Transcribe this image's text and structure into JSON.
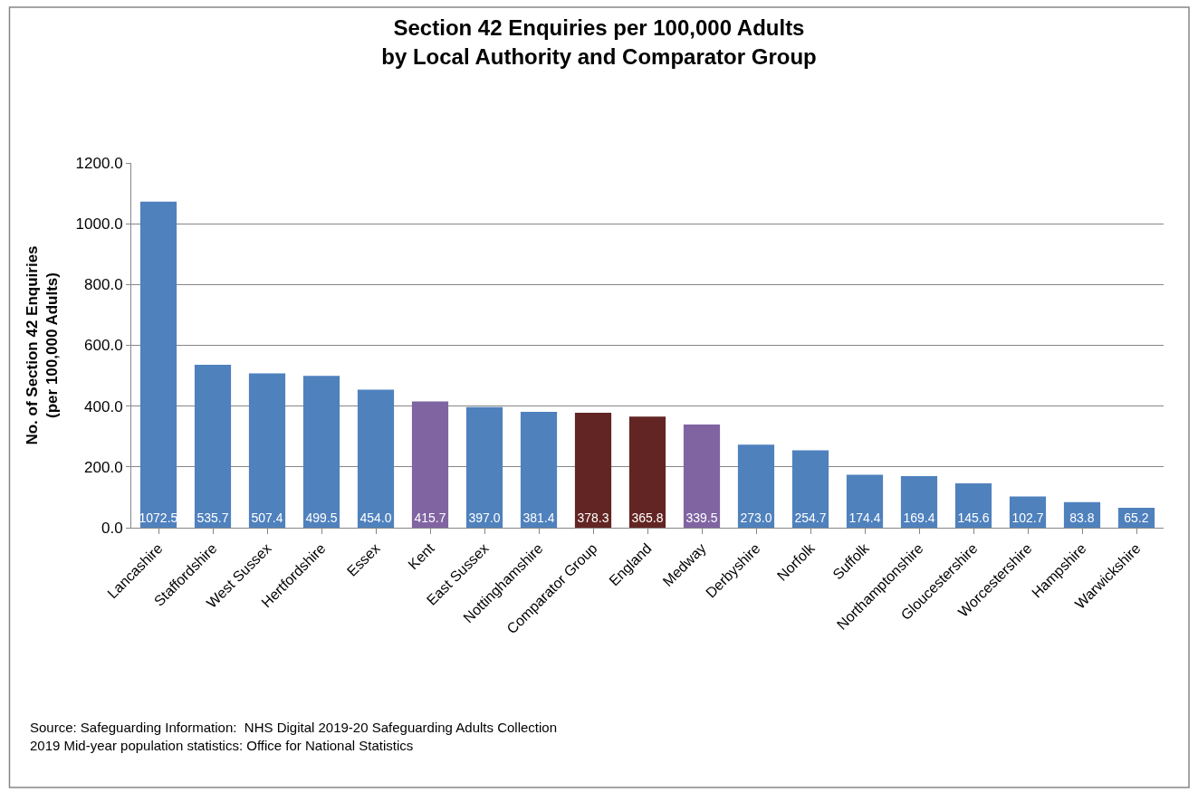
{
  "chart_data": {
    "type": "bar",
    "title": "Section 42 Enquiries per 100,000 Adults\nby Local Authority and Comparator Group",
    "ylabel": "No. of Section 42 Enquiries\n(per 100,000 Adults)",
    "categories": [
      "Lancashire",
      "Staffordshire",
      "West Sussex",
      "Hertfordshire",
      "Essex",
      "Kent",
      "East Sussex",
      "Nottinghamshire",
      "Comparator Group",
      "England",
      "Medway",
      "Derbyshire",
      "Norfolk",
      "Suffolk",
      "Northamptonshire",
      "Gloucestershire",
      "Worcestershire",
      "Hampshire",
      "Warwickshire"
    ],
    "values": [
      1072.5,
      535.7,
      507.4,
      499.5,
      454.0,
      415.7,
      397.0,
      381.4,
      378.3,
      365.8,
      339.5,
      273.0,
      254.7,
      174.4,
      169.4,
      145.6,
      102.7,
      83.8,
      65.2
    ],
    "colors": [
      "#4f81bd",
      "#4f81bd",
      "#4f81bd",
      "#4f81bd",
      "#4f81bd",
      "#8064a2",
      "#4f81bd",
      "#4f81bd",
      "#632523",
      "#632523",
      "#8064a2",
      "#4f81bd",
      "#4f81bd",
      "#4f81bd",
      "#4f81bd",
      "#4f81bd",
      "#4f81bd",
      "#4f81bd",
      "#4f81bd"
    ],
    "ylim": [
      0,
      1200
    ],
    "yticks": [
      {
        "value": 0,
        "label": "0.0"
      },
      {
        "value": 200,
        "label": "200.0"
      },
      {
        "value": 400,
        "label": "400.0"
      },
      {
        "value": 600,
        "label": "600.0"
      },
      {
        "value": 800,
        "label": "800.0"
      },
      {
        "value": 1000,
        "label": "1000.0"
      },
      {
        "value": 1200,
        "label": "1200.0"
      }
    ],
    "grid": "y",
    "value_labels": [
      "1072.5",
      "535.7",
      "507.4",
      "499.5",
      "454.0",
      "415.7",
      "397.0",
      "381.4",
      "378.3",
      "365.8",
      "339.5",
      "273.0",
      "254.7",
      "174.4",
      "169.4",
      "145.6",
      "102.7",
      "83.8",
      "65.2"
    ],
    "annotations": [
      "Source: Safeguarding Information:  NHS Digital 2019-20 Safeguarding Adults Collection\n2019 Mid-year population statistics: Office for National Statistics"
    ]
  }
}
